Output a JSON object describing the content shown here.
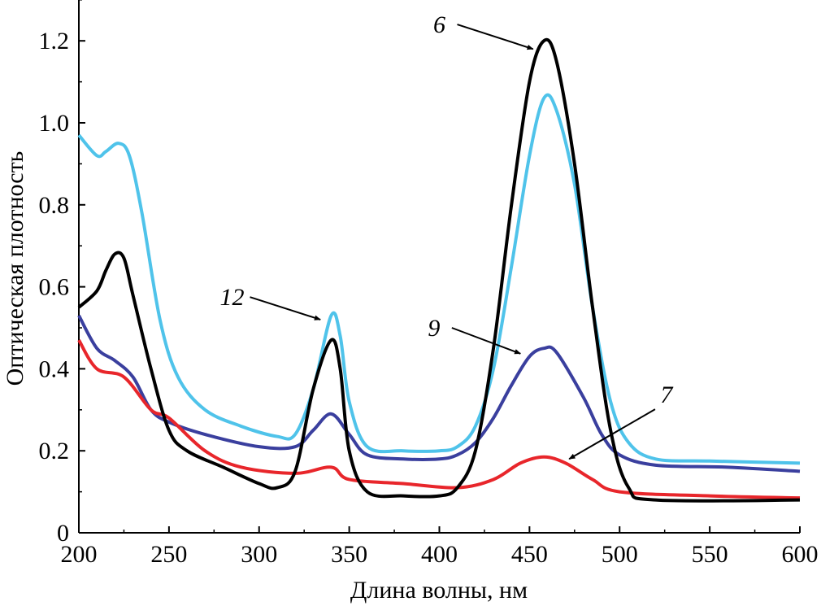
{
  "chart_data": {
    "type": "line",
    "title": "",
    "xlabel": "Длина волны, нм",
    "ylabel": "Оптическая плотность",
    "xlim": [
      200,
      600
    ],
    "ylim": [
      0,
      1.3
    ],
    "xticks": [
      200,
      250,
      300,
      350,
      400,
      450,
      500,
      550,
      600
    ],
    "xtick_labels": [
      "200",
      "250",
      "300",
      "350",
      "400",
      "450",
      "500",
      "550",
      "600"
    ],
    "yticks": [
      0,
      0.2,
      0.4,
      0.6,
      0.8,
      1.0,
      1.2
    ],
    "ytick_labels": [
      "0",
      "0.2",
      "0.4",
      "0.6",
      "0.8",
      "1.0",
      "1.2"
    ],
    "grid": false,
    "series": [
      {
        "name": "12",
        "color": "#4fc3ea",
        "x": [
          200,
          210,
          215,
          222,
          228,
          235,
          245,
          255,
          270,
          290,
          310,
          320,
          330,
          340,
          345,
          350,
          360,
          380,
          400,
          410,
          420,
          430,
          440,
          450,
          458,
          465,
          475,
          485,
          495,
          505,
          520,
          550,
          600
        ],
        "y": [
          0.97,
          0.92,
          0.93,
          0.95,
          0.92,
          0.78,
          0.52,
          0.38,
          0.3,
          0.26,
          0.235,
          0.24,
          0.35,
          0.53,
          0.48,
          0.32,
          0.21,
          0.2,
          0.2,
          0.21,
          0.26,
          0.4,
          0.65,
          0.92,
          1.06,
          1.03,
          0.85,
          0.55,
          0.32,
          0.22,
          0.18,
          0.175,
          0.17
        ]
      },
      {
        "name": "9",
        "color": "#3a3f9e",
        "x": [
          200,
          210,
          220,
          230,
          240,
          250,
          270,
          300,
          320,
          330,
          340,
          350,
          360,
          380,
          400,
          410,
          420,
          430,
          440,
          450,
          458,
          465,
          480,
          490,
          500,
          520,
          560,
          600
        ],
        "y": [
          0.53,
          0.45,
          0.42,
          0.38,
          0.3,
          0.27,
          0.24,
          0.21,
          0.21,
          0.25,
          0.29,
          0.24,
          0.19,
          0.18,
          0.18,
          0.19,
          0.22,
          0.28,
          0.36,
          0.43,
          0.45,
          0.44,
          0.33,
          0.24,
          0.19,
          0.165,
          0.16,
          0.15
        ]
      },
      {
        "name": "7",
        "color": "#e8262b",
        "x": [
          200,
          210,
          225,
          240,
          250,
          270,
          290,
          320,
          340,
          350,
          380,
          410,
          430,
          445,
          458,
          470,
          485,
          500,
          550,
          600
        ],
        "y": [
          0.47,
          0.4,
          0.38,
          0.3,
          0.28,
          0.2,
          0.16,
          0.145,
          0.16,
          0.13,
          0.12,
          0.11,
          0.13,
          0.17,
          0.185,
          0.17,
          0.13,
          0.1,
          0.09,
          0.085
        ]
      },
      {
        "name": "6",
        "color": "#000000",
        "x": [
          200,
          210,
          215,
          220,
          225,
          230,
          240,
          250,
          260,
          280,
          300,
          310,
          320,
          330,
          340,
          345,
          350,
          360,
          380,
          400,
          410,
          420,
          430,
          440,
          450,
          458,
          465,
          475,
          485,
          495,
          505,
          520,
          600
        ],
        "y": [
          0.55,
          0.59,
          0.64,
          0.68,
          0.67,
          0.58,
          0.4,
          0.25,
          0.2,
          0.16,
          0.12,
          0.11,
          0.15,
          0.35,
          0.47,
          0.4,
          0.2,
          0.1,
          0.09,
          0.09,
          0.11,
          0.2,
          0.45,
          0.8,
          1.1,
          1.2,
          1.15,
          0.9,
          0.55,
          0.25,
          0.11,
          0.08,
          0.08
        ]
      }
    ],
    "annotations": [
      {
        "text": "6",
        "at": [
          400,
          1.24
        ],
        "arrow_to": [
          452,
          1.18
        ]
      },
      {
        "text": "12",
        "at": [
          285,
          0.575
        ],
        "arrow_to": [
          334,
          0.52
        ]
      },
      {
        "text": "9",
        "at": [
          397,
          0.5
        ],
        "arrow_to": [
          445,
          0.437
        ]
      },
      {
        "text": "7",
        "at": [
          526,
          0.337
        ],
        "arrow_to": [
          472,
          0.18
        ]
      }
    ]
  }
}
